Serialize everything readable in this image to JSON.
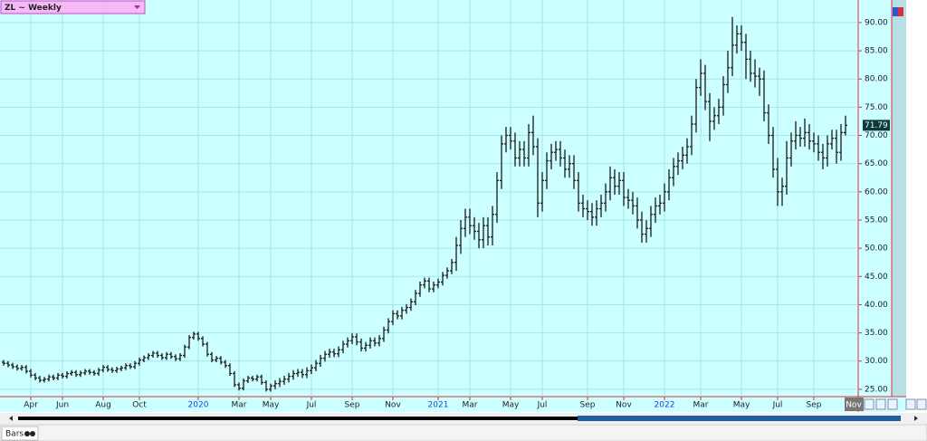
{
  "chart_data": {
    "type": "ohlc",
    "title": "ZL ~ Weekly",
    "tab_label": "Bars",
    "x_marker_label": "Nov",
    "categories": [
      null,
      null,
      null,
      null,
      null,
      null,
      "Apr",
      null,
      null,
      null,
      null,
      null,
      null,
      "Jun",
      null,
      null,
      null,
      null,
      null,
      null,
      null,
      null,
      "Aug",
      null,
      null,
      null,
      null,
      null,
      null,
      null,
      "Oct",
      null,
      null,
      null,
      null,
      null,
      null,
      null,
      null,
      null,
      null,
      null,
      null,
      "2020",
      null,
      null,
      null,
      null,
      null,
      null,
      null,
      null,
      "Mar",
      null,
      null,
      null,
      null,
      null,
      null,
      "May",
      null,
      null,
      null,
      null,
      null,
      null,
      null,
      null,
      "Jul",
      null,
      null,
      null,
      null,
      null,
      null,
      null,
      null,
      "Sep",
      null,
      null,
      null,
      null,
      null,
      null,
      null,
      null,
      "Nov",
      null,
      null,
      null,
      null,
      null,
      null,
      null,
      null,
      null,
      "2021",
      null,
      null,
      null,
      null,
      null,
      null,
      "Mar",
      null,
      null,
      null,
      null,
      null,
      null,
      null,
      null,
      "May",
      null,
      null,
      null,
      null,
      null,
      null,
      "Jul",
      null,
      null,
      null,
      null,
      null,
      null,
      null,
      null,
      null,
      "Sep",
      null,
      null,
      null,
      null,
      null,
      null,
      null,
      "Nov",
      null,
      null,
      null,
      null,
      null,
      null,
      null,
      null,
      "2022",
      null,
      null,
      null,
      null,
      null,
      null,
      null,
      "Mar",
      null,
      null,
      null,
      null,
      null,
      null,
      null,
      null,
      "May",
      null,
      null,
      null,
      null,
      null,
      null,
      null,
      "Jul",
      null,
      null,
      null,
      null,
      null,
      null,
      null,
      "Sep",
      null,
      null,
      null,
      null,
      null,
      null,
      null
    ],
    "open": [
      29.8,
      29.6,
      29.3,
      29.0,
      28.7,
      28.9,
      28.2,
      27.5,
      27.0,
      26.6,
      26.8,
      27.2,
      27.0,
      27.5,
      27.3,
      27.8,
      28.0,
      27.6,
      27.9,
      28.2,
      28.0,
      27.8,
      28.4,
      28.9,
      28.5,
      28.3,
      28.6,
      28.8,
      29.2,
      29.0,
      29.6,
      30.2,
      30.6,
      31.0,
      31.4,
      31.0,
      30.6,
      31.2,
      30.8,
      30.4,
      31.0,
      32.5,
      34.2,
      34.8,
      34.0,
      33.0,
      31.2,
      30.2,
      30.5,
      29.8,
      29.2,
      27.8,
      25.8,
      25.2,
      26.5,
      27.0,
      26.8,
      27.2,
      26.2,
      25.0,
      25.6,
      26.0,
      26.4,
      26.8,
      27.3,
      27.8,
      28.0,
      27.6,
      28.3,
      28.8,
      29.6,
      30.5,
      31.2,
      31.6,
      31.3,
      32.0,
      33.0,
      33.6,
      34.3,
      33.4,
      32.3,
      32.8,
      33.6,
      33.2,
      34.0,
      35.5,
      37.0,
      38.4,
      38.0,
      39.0,
      39.5,
      40.5,
      42.0,
      43.5,
      44.2,
      42.8,
      43.5,
      44.0,
      45.2,
      46.0,
      47.5,
      50.5,
      53.5,
      55.5,
      54.0,
      53.0,
      51.5,
      54.0,
      52.0,
      56.0,
      62.0,
      68.5,
      70.0,
      69.0,
      66.0,
      67.5,
      66.0,
      70.5,
      68.0,
      58.0,
      62.0,
      65.5,
      67.0,
      67.5,
      66.0,
      64.0,
      65.0,
      62.0,
      58.0,
      57.0,
      56.5,
      55.5,
      57.0,
      58.0,
      60.0,
      62.5,
      61.0,
      62.0,
      59.0,
      58.5,
      57.5,
      55.0,
      52.5,
      53.5,
      56.0,
      57.5,
      58.0,
      60.0,
      62.5,
      64.5,
      65.5,
      66.5,
      68.0,
      72.0,
      78.5,
      81.0,
      76.0,
      72.5,
      73.5,
      75.0,
      79.0,
      82.0,
      86.0,
      88.0,
      86.5,
      83.5,
      81.0,
      80.5,
      80.0,
      74.0,
      70.0,
      64.0,
      60.0,
      61.0,
      66.0,
      69.0,
      70.0,
      69.5,
      70.5,
      69.0,
      68.5,
      67.0,
      66.0,
      68.5,
      69.5,
      67.0,
      70.5
    ],
    "high": [
      30.2,
      30.0,
      29.7,
      29.4,
      29.3,
      29.3,
      28.6,
      27.9,
      27.4,
      27.2,
      27.6,
      27.6,
      27.9,
      27.9,
      28.2,
      28.4,
      28.4,
      28.3,
      28.6,
      28.6,
      28.4,
      28.8,
      29.3,
      29.3,
      28.9,
      29.0,
      29.2,
      29.6,
      29.6,
      30.0,
      30.6,
      31.0,
      31.4,
      31.8,
      31.8,
      31.4,
      31.6,
      31.6,
      31.2,
      31.4,
      32.9,
      34.6,
      35.2,
      35.2,
      34.4,
      33.4,
      31.6,
      30.9,
      30.9,
      30.2,
      29.6,
      28.2,
      26.2,
      26.9,
      27.4,
      27.4,
      27.6,
      27.6,
      26.6,
      26.0,
      26.6,
      27.0,
      27.4,
      27.9,
      28.4,
      28.6,
      28.6,
      28.9,
      29.4,
      30.2,
      31.1,
      31.8,
      32.2,
      32.2,
      32.6,
      33.6,
      34.2,
      34.9,
      34.9,
      34.0,
      33.4,
      34.2,
      34.2,
      34.6,
      36.1,
      37.6,
      39.0,
      39.0,
      39.6,
      40.1,
      41.1,
      42.6,
      44.1,
      44.8,
      44.8,
      44.1,
      44.6,
      45.8,
      46.6,
      48.1,
      52.0,
      55.0,
      57.0,
      57.0,
      55.5,
      54.5,
      55.5,
      55.5,
      57.5,
      63.5,
      70.0,
      71.5,
      71.5,
      70.5,
      69.0,
      69.0,
      72.0,
      73.5,
      69.5,
      63.5,
      67.0,
      68.5,
      69.0,
      69.0,
      67.5,
      66.5,
      66.5,
      63.5,
      59.5,
      58.5,
      58.0,
      58.5,
      59.5,
      61.5,
      64.5,
      64.0,
      63.5,
      63.5,
      60.5,
      60.0,
      59.0,
      56.5,
      55.0,
      57.5,
      59.0,
      59.5,
      61.5,
      64.0,
      66.0,
      67.0,
      68.0,
      69.5,
      73.5,
      80.0,
      83.5,
      82.5,
      77.5,
      75.0,
      76.5,
      80.5,
      85.0,
      91.0,
      89.5,
      89.5,
      88.0,
      85.0,
      83.5,
      82.0,
      81.5,
      75.5,
      71.5,
      66.0,
      62.5,
      69.0,
      70.5,
      72.5,
      71.5,
      73.0,
      72.0,
      70.5,
      70.0,
      68.5,
      70.0,
      71.0,
      71.0,
      72.0,
      73.5
    ],
    "low": [
      29.2,
      28.9,
      28.6,
      28.3,
      28.3,
      27.8,
      27.1,
      26.6,
      26.2,
      26.2,
      26.4,
      26.6,
      26.6,
      26.9,
      26.9,
      27.4,
      27.2,
      27.2,
      27.5,
      27.6,
      27.4,
      27.4,
      28.0,
      28.1,
      27.9,
      27.9,
      28.2,
      28.4,
      28.6,
      28.6,
      29.2,
      29.8,
      30.2,
      30.6,
      30.6,
      30.2,
      30.2,
      30.4,
      30.0,
      30.0,
      30.6,
      32.1,
      33.8,
      33.6,
      32.6,
      30.8,
      29.8,
      29.8,
      29.4,
      28.8,
      27.4,
      25.4,
      24.8,
      24.8,
      26.1,
      26.4,
      26.4,
      25.8,
      24.6,
      24.6,
      25.0,
      25.4,
      25.8,
      26.2,
      26.7,
      27.2,
      27.0,
      27.0,
      27.7,
      28.2,
      29.0,
      29.9,
      30.6,
      30.7,
      30.7,
      31.4,
      32.4,
      33.0,
      32.8,
      31.7,
      31.7,
      32.2,
      32.6,
      32.6,
      33.4,
      34.9,
      36.4,
      37.4,
      37.4,
      38.4,
      38.9,
      39.9,
      41.4,
      42.9,
      42.2,
      42.2,
      42.9,
      43.4,
      44.6,
      45.4,
      46.0,
      49.0,
      52.0,
      52.5,
      51.5,
      50.0,
      50.0,
      50.5,
      50.5,
      54.5,
      60.5,
      67.0,
      67.5,
      64.5,
      64.5,
      64.5,
      64.5,
      66.5,
      55.5,
      56.5,
      60.5,
      64.0,
      65.5,
      64.5,
      62.5,
      62.5,
      60.5,
      56.5,
      55.5,
      55.0,
      54.0,
      54.0,
      55.5,
      56.5,
      58.5,
      59.5,
      59.5,
      57.5,
      57.0,
      56.0,
      53.5,
      51.0,
      51.0,
      52.0,
      54.5,
      56.0,
      56.5,
      58.5,
      61.0,
      63.0,
      64.0,
      65.0,
      66.5,
      70.5,
      77.0,
      74.5,
      69.0,
      71.0,
      72.0,
      73.5,
      77.5,
      80.5,
      84.5,
      85.0,
      80.0,
      79.5,
      78.5,
      77.0,
      72.5,
      68.5,
      62.5,
      57.5,
      57.5,
      59.5,
      64.5,
      67.5,
      68.0,
      68.0,
      67.5,
      67.0,
      65.5,
      64.0,
      64.5,
      67.5,
      65.0,
      65.5,
      70.0
    ],
    "close": [
      29.6,
      29.3,
      29.0,
      28.7,
      28.9,
      28.2,
      27.5,
      27.0,
      26.6,
      26.8,
      27.2,
      27.0,
      27.5,
      27.3,
      27.8,
      28.0,
      27.6,
      27.9,
      28.2,
      28.0,
      27.8,
      28.4,
      28.9,
      28.5,
      28.3,
      28.6,
      28.8,
      29.2,
      29.0,
      29.6,
      30.2,
      30.6,
      31.0,
      31.4,
      31.0,
      30.6,
      31.2,
      30.8,
      30.4,
      31.0,
      32.5,
      34.2,
      34.8,
      34.0,
      33.0,
      31.2,
      30.2,
      30.5,
      29.8,
      29.2,
      27.8,
      25.8,
      25.2,
      26.5,
      27.0,
      26.8,
      27.2,
      26.2,
      25.0,
      25.6,
      26.0,
      26.4,
      26.8,
      27.3,
      27.8,
      28.0,
      27.6,
      28.3,
      28.8,
      29.6,
      30.5,
      31.2,
      31.6,
      31.3,
      32.0,
      33.0,
      33.6,
      34.3,
      33.4,
      32.3,
      32.8,
      33.6,
      33.2,
      34.0,
      35.5,
      37.0,
      38.4,
      38.0,
      39.0,
      39.5,
      40.5,
      42.0,
      43.5,
      44.2,
      42.8,
      43.5,
      44.0,
      45.2,
      46.0,
      47.5,
      50.5,
      53.5,
      55.5,
      54.0,
      53.0,
      51.5,
      54.0,
      52.0,
      56.0,
      62.0,
      68.5,
      70.0,
      69.0,
      66.0,
      67.5,
      66.0,
      70.5,
      68.0,
      58.0,
      62.0,
      65.5,
      67.0,
      67.5,
      66.0,
      64.0,
      65.0,
      62.0,
      58.0,
      57.0,
      56.5,
      55.5,
      57.0,
      58.0,
      60.0,
      62.5,
      61.0,
      62.0,
      59.0,
      58.5,
      57.5,
      55.0,
      52.5,
      53.5,
      56.0,
      57.5,
      58.0,
      60.0,
      62.5,
      64.5,
      65.5,
      66.5,
      68.0,
      72.0,
      78.5,
      81.0,
      76.0,
      72.5,
      73.5,
      75.0,
      79.0,
      82.0,
      86.0,
      88.0,
      86.5,
      83.5,
      81.0,
      80.5,
      80.0,
      74.0,
      70.0,
      64.0,
      60.0,
      61.0,
      66.0,
      69.0,
      70.0,
      69.5,
      70.5,
      69.0,
      68.5,
      67.0,
      66.0,
      68.5,
      69.5,
      67.0,
      70.5,
      71.79
    ],
    "color": "#1a1a1a",
    "background": "#ccffff",
    "grid": true,
    "ylim": [
      23.7,
      94.0
    ],
    "yticks": [
      {
        "value": 25,
        "label": "25.00"
      },
      {
        "value": 30,
        "label": "30.00"
      },
      {
        "value": 35,
        "label": "35.00"
      },
      {
        "value": 40,
        "label": "40.00"
      },
      {
        "value": 45,
        "label": "45.00"
      },
      {
        "value": 50,
        "label": "50.00"
      },
      {
        "value": 55,
        "label": "55.00"
      },
      {
        "value": 60,
        "label": "60.00"
      },
      {
        "value": 65,
        "label": "65.00"
      },
      {
        "value": 70,
        "label": "70.00"
      },
      {
        "value": 75,
        "label": "75.00"
      },
      {
        "value": 80,
        "label": "80.00"
      },
      {
        "value": 85,
        "label": "85.00"
      },
      {
        "value": 90,
        "label": "90.00"
      }
    ]
  }
}
